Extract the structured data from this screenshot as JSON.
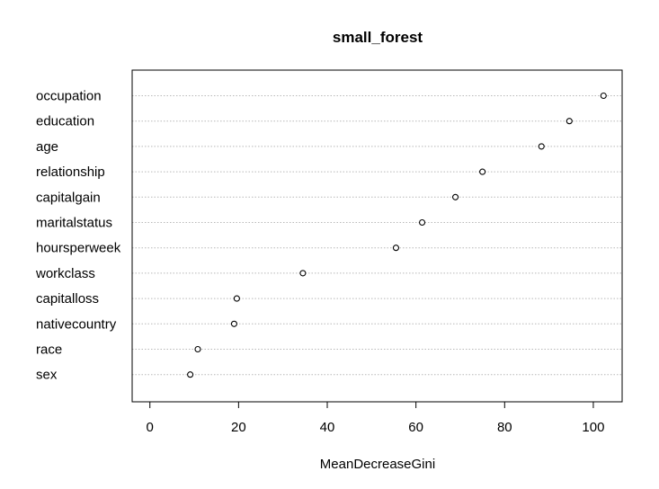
{
  "chart_data": {
    "type": "scatter",
    "title": "small_forest",
    "xlabel": "MeanDecreaseGini",
    "ylabel": "",
    "xlim": [
      -4,
      106.5
    ],
    "xticks": [
      0,
      20,
      40,
      60,
      80,
      100
    ],
    "grid": true,
    "categories": [
      "occupation",
      "education",
      "age",
      "relationship",
      "capitalgain",
      "maritalstatus",
      "hoursperweek",
      "workclass",
      "capitalloss",
      "nativecountry",
      "race",
      "sex"
    ],
    "values": [
      102.3,
      94.6,
      88.3,
      75.0,
      68.9,
      61.4,
      55.5,
      34.5,
      19.6,
      19.0,
      10.8,
      9.1
    ]
  }
}
